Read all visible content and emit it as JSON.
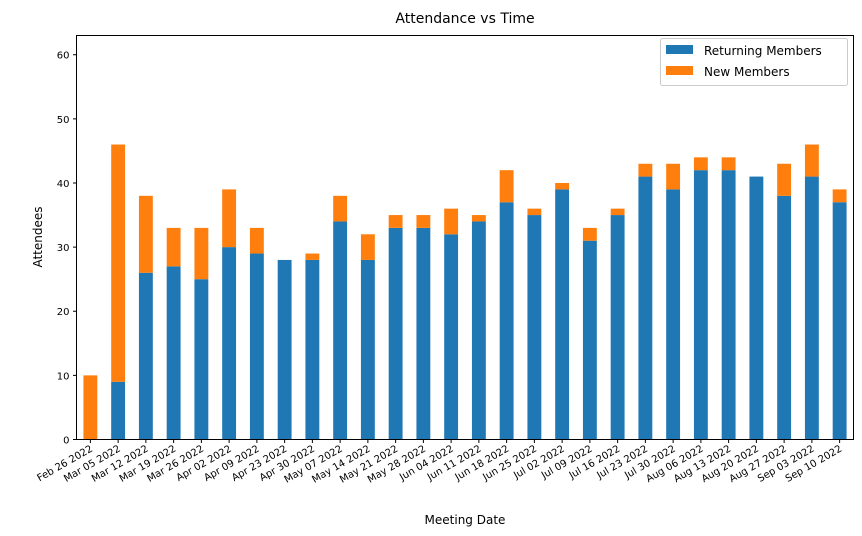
{
  "chart_data": {
    "type": "bar",
    "stacked": true,
    "title": "Attendance vs Time",
    "xlabel": "Meeting Date",
    "ylabel": "Attendees",
    "ylim": [
      0,
      63
    ],
    "yticks": [
      0,
      10,
      20,
      30,
      40,
      50,
      60
    ],
    "grid": false,
    "legend_position": "top-right",
    "categories": [
      "Feb 26 2022",
      "Mar 05 2022",
      "Mar 12 2022",
      "Mar 19 2022",
      "Mar 26 2022",
      "Apr 02 2022",
      "Apr 09 2022",
      "Apr 23 2022",
      "Apr 30 2022",
      "May 07 2022",
      "May 14 2022",
      "May 21 2022",
      "May 28 2022",
      "Jun 04 2022",
      "Jun 11 2022",
      "Jun 18 2022",
      "Jun 25 2022",
      "Jul 02 2022",
      "Jul 09 2022",
      "Jul 16 2022",
      "Jul 23 2022",
      "Jul 30 2022",
      "Aug 06 2022",
      "Aug 13 2022",
      "Aug 20 2022",
      "Aug 27 2022",
      "Sep 03 2022",
      "Sep 10 2022"
    ],
    "series": [
      {
        "name": "Returning Members",
        "color": "#1f77b4",
        "values": [
          0,
          9,
          26,
          27,
          25,
          30,
          29,
          28,
          28,
          34,
          28,
          33,
          33,
          32,
          34,
          37,
          35,
          39,
          31,
          35,
          41,
          39,
          42,
          42,
          41,
          38,
          41,
          37
        ]
      },
      {
        "name": "New Members",
        "color": "#ff7f0e",
        "values": [
          10,
          37,
          12,
          6,
          8,
          9,
          4,
          0,
          1,
          4,
          4,
          2,
          2,
          4,
          1,
          5,
          1,
          1,
          2,
          1,
          2,
          4,
          2,
          2,
          0,
          5,
          5,
          2
        ]
      }
    ]
  }
}
